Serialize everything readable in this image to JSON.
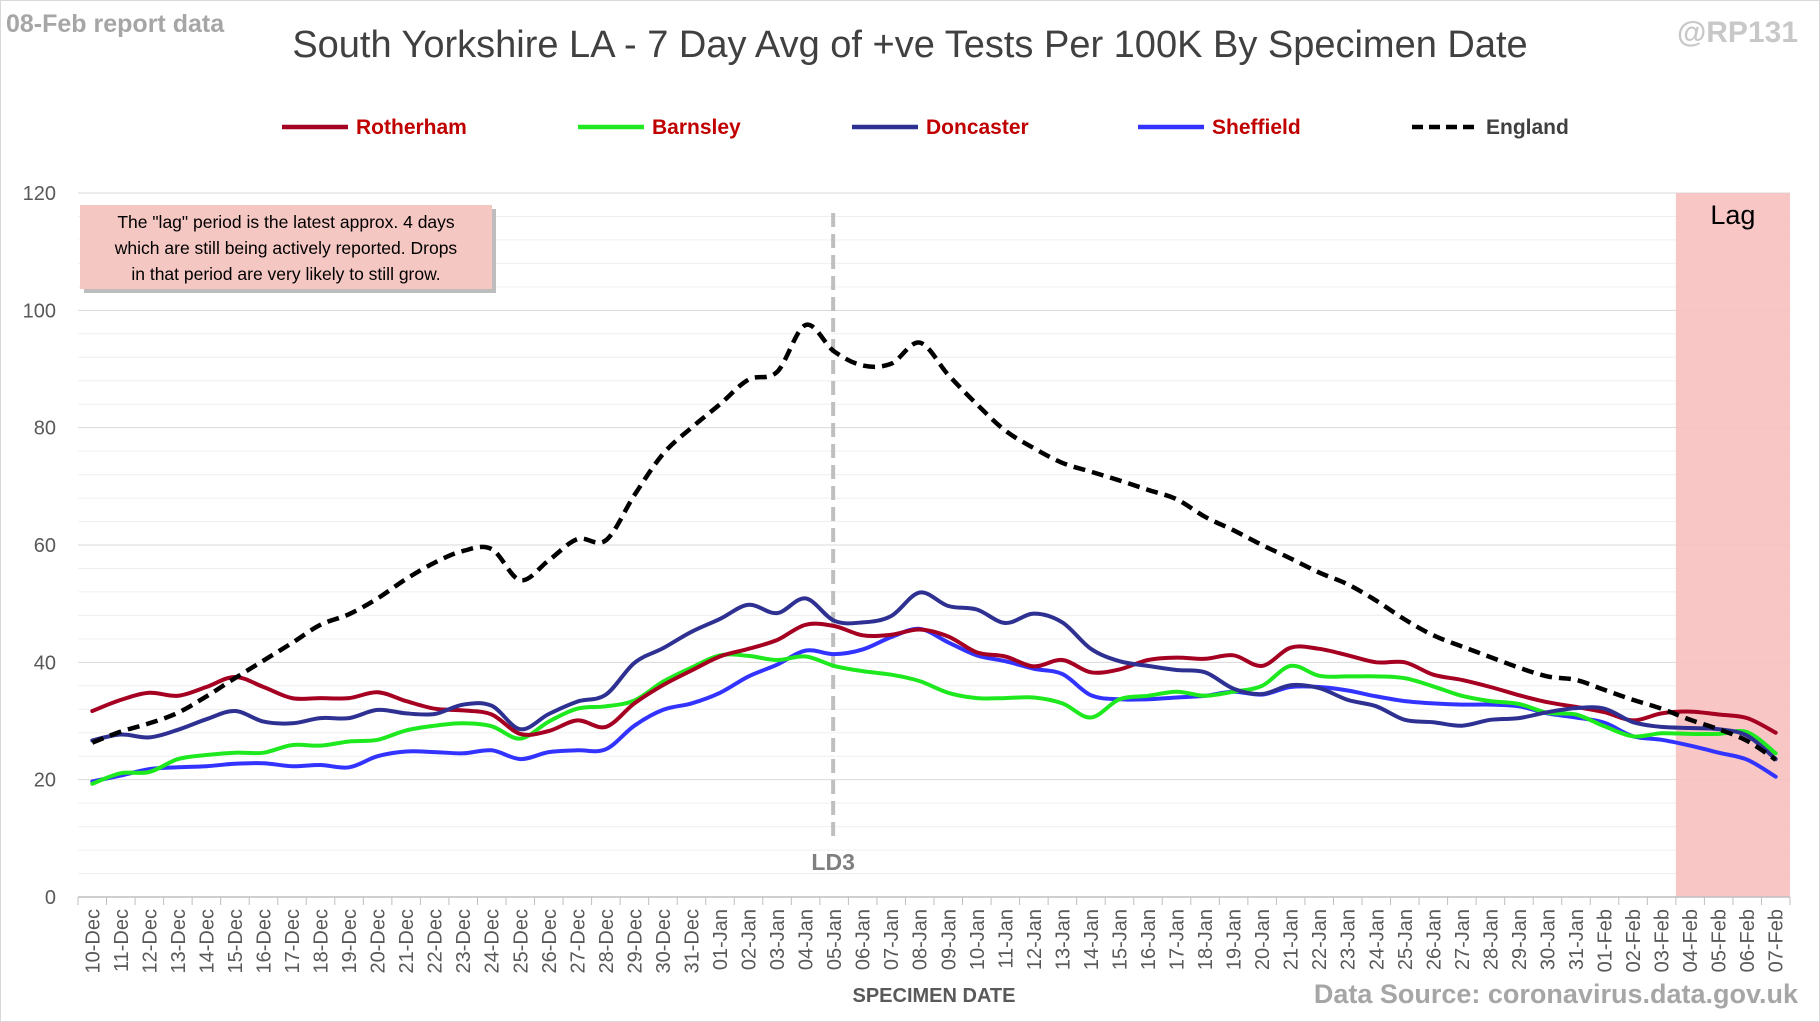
{
  "header": {
    "report_date": "08-Feb report data",
    "handle": "@RP131",
    "title": "South Yorkshire LA - 7 Day Avg of +ve Tests Per 100K By Specimen Date",
    "source": "Data Source: coronavirus.data.gov.uk"
  },
  "colors": {
    "Rotherham": "#a50021",
    "Barnsley": "#1ee81e",
    "Doncaster": "#2e3192",
    "Sheffield": "#3333ff",
    "England": "#000000",
    "legend_text_la": "#c00000",
    "legend_text_england": "#404040",
    "lag_band": "#f8bcbc",
    "note_box": "#f4c7c3",
    "grid": "#d9d9d9",
    "ld3_line": "#bfbfbf"
  },
  "chart_data": {
    "type": "line",
    "title": "South Yorkshire LA - 7 Day Avg of +ve Tests Per 100K By Specimen Date",
    "xlabel": "SPECIMEN DATE",
    "ylabel": "",
    "ylim": [
      0,
      120
    ],
    "yticks": [
      0,
      20,
      40,
      60,
      80,
      100,
      120
    ],
    "grid": true,
    "legend_position": "top",
    "categories": [
      "10-Dec",
      "11-Dec",
      "12-Dec",
      "13-Dec",
      "14-Dec",
      "15-Dec",
      "16-Dec",
      "17-Dec",
      "18-Dec",
      "19-Dec",
      "20-Dec",
      "21-Dec",
      "22-Dec",
      "23-Dec",
      "24-Dec",
      "25-Dec",
      "26-Dec",
      "27-Dec",
      "28-Dec",
      "29-Dec",
      "30-Dec",
      "31-Dec",
      "01-Jan",
      "02-Jan",
      "03-Jan",
      "04-Jan",
      "05-Jan",
      "06-Jan",
      "07-Jan",
      "08-Jan",
      "09-Jan",
      "10-Jan",
      "11-Jan",
      "12-Jan",
      "13-Jan",
      "14-Jan",
      "15-Jan",
      "16-Jan",
      "17-Jan",
      "18-Jan",
      "19-Jan",
      "20-Jan",
      "21-Jan",
      "22-Jan",
      "23-Jan",
      "24-Jan",
      "25-Jan",
      "26-Jan",
      "27-Jan",
      "28-Jan",
      "29-Jan",
      "30-Jan",
      "31-Jan",
      "01-Feb",
      "02-Feb",
      "03-Feb",
      "04-Feb",
      "05-Feb",
      "06-Feb",
      "07-Feb"
    ],
    "series": [
      {
        "name": "Rotherham",
        "values": [
          31.7,
          33.6,
          34.8,
          34.3,
          35.8,
          37.5,
          35.8,
          33.9,
          33.9,
          33.9,
          34.9,
          33.4,
          32.1,
          31.8,
          31.1,
          27.8,
          28.3,
          30.1,
          29.0,
          33.0,
          36.1,
          38.6,
          41.0,
          42.3,
          43.8,
          46.4,
          46.2,
          44.6,
          44.7,
          45.6,
          44.4,
          41.7,
          41.0,
          39.3,
          40.4,
          38.3,
          38.8,
          40.4,
          40.8,
          40.6,
          41.2,
          39.4,
          42.5,
          42.3,
          41.2,
          40.0,
          40.0,
          37.9,
          37.0,
          35.8,
          34.4,
          33.2,
          32.4,
          31.5,
          30.1,
          31.3,
          31.6,
          31.1,
          30.5,
          28.0
        ]
      },
      {
        "name": "Barnsley",
        "values": [
          19.3,
          21.1,
          21.3,
          23.5,
          24.2,
          24.6,
          24.6,
          25.9,
          25.8,
          26.5,
          26.8,
          28.4,
          29.2,
          29.6,
          29.1,
          27.0,
          29.9,
          32.1,
          32.5,
          33.5,
          36.7,
          39.1,
          41.2,
          41.1,
          40.4,
          41.0,
          39.4,
          38.5,
          37.9,
          36.8,
          34.8,
          33.9,
          33.9,
          34.0,
          33.0,
          30.6,
          33.7,
          34.3,
          35.0,
          34.3,
          35.0,
          36.0,
          39.4,
          37.7,
          37.6,
          37.6,
          37.3,
          35.9,
          34.3,
          33.4,
          32.9,
          31.4,
          31.1,
          29.1,
          27.4,
          27.9,
          27.8,
          27.8,
          28.1,
          24.5
        ]
      },
      {
        "name": "Doncaster",
        "values": [
          26.7,
          27.7,
          27.2,
          28.5,
          30.3,
          31.7,
          29.9,
          29.6,
          30.5,
          30.5,
          31.9,
          31.3,
          31.2,
          32.8,
          32.6,
          28.6,
          31.2,
          33.3,
          34.5,
          39.9,
          42.4,
          45.2,
          47.4,
          49.8,
          48.4,
          50.9,
          47.1,
          46.8,
          47.9,
          51.9,
          49.6,
          49.0,
          46.7,
          48.3,
          46.8,
          42.3,
          40.2,
          39.4,
          38.7,
          38.3,
          35.5,
          34.6,
          36.1,
          35.6,
          33.6,
          32.5,
          30.2,
          29.8,
          29.2,
          30.2,
          30.5,
          31.5,
          32.2,
          32.1,
          29.8,
          29.0,
          28.8,
          28.6,
          27.5,
          23.5
        ]
      },
      {
        "name": "Sheffield",
        "values": [
          19.7,
          20.7,
          21.8,
          22.1,
          22.3,
          22.7,
          22.8,
          22.3,
          22.5,
          22.1,
          24.0,
          24.8,
          24.7,
          24.5,
          25.0,
          23.5,
          24.7,
          25.0,
          25.2,
          29.2,
          31.9,
          33.0,
          34.8,
          37.6,
          39.6,
          42.0,
          41.4,
          42.2,
          44.3,
          45.7,
          43.4,
          41.2,
          40.2,
          38.9,
          38.0,
          34.4,
          33.7,
          33.7,
          34.0,
          34.3,
          35.0,
          34.5,
          35.8,
          35.8,
          35.2,
          34.2,
          33.4,
          33.0,
          32.8,
          32.8,
          32.5,
          31.3,
          30.6,
          29.7,
          27.4,
          26.8,
          25.8,
          24.6,
          23.4,
          20.5
        ]
      },
      {
        "name": "England",
        "values": [
          26.3,
          28.2,
          29.6,
          31.4,
          34.2,
          37.3,
          40.3,
          43.3,
          46.4,
          48.2,
          50.9,
          54.2,
          57.0,
          59.0,
          59.3,
          54.0,
          57.4,
          61.0,
          60.8,
          68.5,
          75.5,
          80.0,
          84.0,
          88.2,
          89.5,
          97.5,
          93.0,
          90.6,
          90.9,
          94.5,
          89.0,
          84.0,
          79.5,
          76.5,
          74.0,
          72.5,
          71.0,
          69.4,
          67.8,
          64.8,
          62.5,
          60.0,
          57.7,
          55.3,
          53.3,
          50.5,
          47.3,
          44.6,
          42.7,
          40.9,
          39.1,
          37.6,
          37.0,
          35.3,
          33.6,
          32.1,
          30.2,
          28.6,
          26.6,
          23.4
        ]
      }
    ],
    "annotations": {
      "lag_label": "Lag",
      "lag_start": "04-Feb",
      "lag_end": "07-Feb",
      "ld3_label": "LD3",
      "ld3_date": "05-Jan",
      "note": [
        "The \"lag\" period is the latest approx. 4 days",
        "which are still being actively reported.  Drops",
        "in that period are very likely to still grow."
      ]
    }
  }
}
